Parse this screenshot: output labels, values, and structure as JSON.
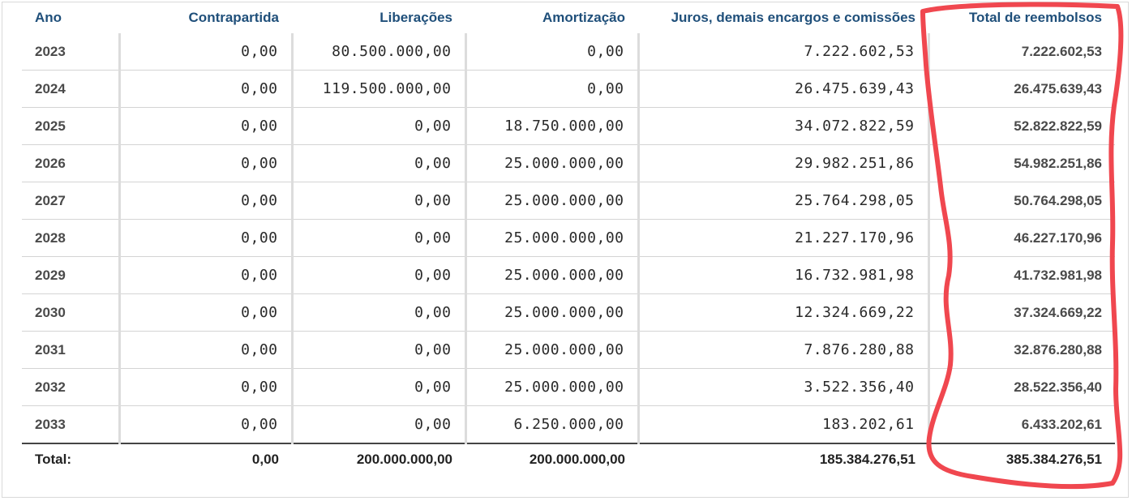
{
  "table": {
    "headers": {
      "ano": "Ano",
      "contrapartida": "Contrapartida",
      "liberacoes": "Liberações",
      "amortizacao": "Amortização",
      "juros": "Juros, demais encargos e comissões",
      "total": "Total de reembolsos"
    },
    "rows": [
      {
        "ano": "2023",
        "contrapartida": "0,00",
        "liberacoes": "80.500.000,00",
        "amortizacao": "0,00",
        "juros": "7.222.602,53",
        "total": "7.222.602,53"
      },
      {
        "ano": "2024",
        "contrapartida": "0,00",
        "liberacoes": "119.500.000,00",
        "amortizacao": "0,00",
        "juros": "26.475.639,43",
        "total": "26.475.639,43"
      },
      {
        "ano": "2025",
        "contrapartida": "0,00",
        "liberacoes": "0,00",
        "amortizacao": "18.750.000,00",
        "juros": "34.072.822,59",
        "total": "52.822.822,59"
      },
      {
        "ano": "2026",
        "contrapartida": "0,00",
        "liberacoes": "0,00",
        "amortizacao": "25.000.000,00",
        "juros": "29.982.251,86",
        "total": "54.982.251,86"
      },
      {
        "ano": "2027",
        "contrapartida": "0,00",
        "liberacoes": "0,00",
        "amortizacao": "25.000.000,00",
        "juros": "25.764.298,05",
        "total": "50.764.298,05"
      },
      {
        "ano": "2028",
        "contrapartida": "0,00",
        "liberacoes": "0,00",
        "amortizacao": "25.000.000,00",
        "juros": "21.227.170,96",
        "total": "46.227.170,96"
      },
      {
        "ano": "2029",
        "contrapartida": "0,00",
        "liberacoes": "0,00",
        "amortizacao": "25.000.000,00",
        "juros": "16.732.981,98",
        "total": "41.732.981,98"
      },
      {
        "ano": "2030",
        "contrapartida": "0,00",
        "liberacoes": "0,00",
        "amortizacao": "25.000.000,00",
        "juros": "12.324.669,22",
        "total": "37.324.669,22"
      },
      {
        "ano": "2031",
        "contrapartida": "0,00",
        "liberacoes": "0,00",
        "amortizacao": "25.000.000,00",
        "juros": "7.876.280,88",
        "total": "32.876.280,88"
      },
      {
        "ano": "2032",
        "contrapartida": "0,00",
        "liberacoes": "0,00",
        "amortizacao": "25.000.000,00",
        "juros": "3.522.356,40",
        "total": "28.522.356,40"
      },
      {
        "ano": "2033",
        "contrapartida": "0,00",
        "liberacoes": "0,00",
        "amortizacao": "6.250.000,00",
        "juros": "183.202,61",
        "total": "6.433.202,61"
      }
    ],
    "totals": {
      "label": "Total:",
      "contrapartida": "0,00",
      "liberacoes": "200.000.000,00",
      "amortizacao": "200.000.000,00",
      "juros": "185.384.276,51",
      "total": "385.384.276,51"
    }
  },
  "colors": {
    "header_text": "#1f4f7a",
    "annotation": "#f0474f"
  },
  "annotation": {
    "kind": "hand-drawn highlight",
    "target": "total-de-reembolsos-column"
  }
}
